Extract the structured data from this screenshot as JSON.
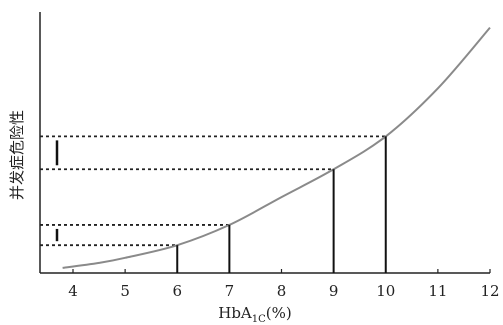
{
  "chart_data": {
    "type": "line",
    "title": "",
    "ylabel": "并发症危险性",
    "xlabel_main": "HbA",
    "xlabel_sub": "1C",
    "xlabel_unit": "(%)",
    "x_ticks": [
      "4",
      "5",
      "6",
      "7",
      "8",
      "9",
      "10",
      "11",
      "12"
    ],
    "xlim": [
      3.3,
      12.0
    ],
    "ylim": [
      0,
      1
    ],
    "grid": false,
    "curve": {
      "x": [
        3.8,
        4.5,
        5.0,
        6.0,
        7.0,
        8.0,
        9.0,
        10.0,
        11.0,
        12.0
      ],
      "y": [
        0.02,
        0.04,
        0.06,
        0.11,
        0.19,
        0.3,
        0.41,
        0.54,
        0.73,
        0.97
      ]
    },
    "markers": [
      {
        "x": 6,
        "y": 0.11
      },
      {
        "x": 7,
        "y": 0.19
      },
      {
        "x": 9,
        "y": 0.41
      },
      {
        "x": 10,
        "y": 0.54
      }
    ],
    "ranges": [
      {
        "from": 0.11,
        "to": 0.19
      },
      {
        "from": 0.41,
        "to": 0.54
      }
    ]
  }
}
